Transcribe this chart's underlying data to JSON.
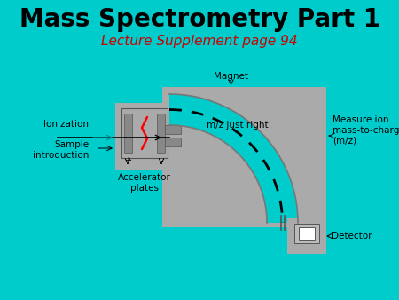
{
  "title": "Mass Spectrometry Part 1",
  "subtitle": "Lecture Supplement page 94",
  "title_color": "#000000",
  "subtitle_color": "#cc0000",
  "bg_color": "#00cccc",
  "gray_color": "#aaaaaa",
  "dark_gray": "#777777",
  "labels": {
    "ionization": "Ionization",
    "sample": "Sample\nintroduction",
    "magnet": "Magnet",
    "mz": "m/z just right",
    "accelerator": "Accelerator\nplates",
    "measure": "Measure ion\nmass-to-charge ratio\n(m/z)",
    "detector": "Detector"
  },
  "title_fontsize": 20,
  "subtitle_fontsize": 11,
  "label_fontsize": 7.5
}
